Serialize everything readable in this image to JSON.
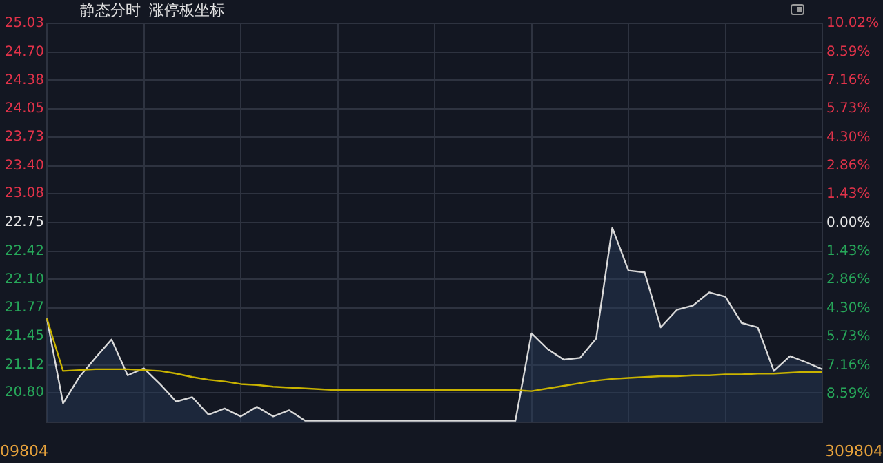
{
  "chart_data": {
    "type": "area",
    "annotations": [
      "静态分时",
      "涨停板坐标",
      "09804",
      "309804"
    ],
    "categories": [
      null,
      null,
      null,
      null,
      null,
      null,
      null,
      null,
      null,
      null,
      null,
      null,
      null,
      null,
      null,
      null,
      null,
      null,
      null,
      null,
      null,
      null,
      null,
      null,
      null,
      null,
      null,
      null,
      null,
      null,
      null,
      null,
      null,
      null,
      null,
      null,
      null,
      null,
      null,
      null,
      null,
      null,
      null,
      null,
      null,
      null,
      null,
      null,
      null
    ],
    "ylim": [
      20.46,
      25.03
    ],
    "yticks": [
      25.03,
      {
        "value": 24.7,
        "label": "24.70"
      },
      24.38,
      24.05,
      23.73,
      {
        "value": 23.4,
        "label": "23.40"
      },
      23.08,
      22.75,
      22.42,
      {
        "value": 22.1,
        "label": "22.10"
      },
      21.77,
      21.45,
      21.12,
      {
        "value": 20.8,
        "label": "20.80"
      }
    ],
    "y2lim": [
      -10.02,
      10.02
    ],
    "y2ticks": [
      {
        "value": 10.02,
        "label": "10.02%"
      },
      {
        "value": 8.59,
        "label": "8.59%"
      },
      {
        "value": 7.16,
        "label": "7.16%"
      },
      {
        "value": 5.73,
        "label": "5.73%"
      },
      {
        "value": 4.3,
        "label": "4.30%"
      },
      {
        "value": 2.86,
        "label": "2.86%"
      },
      {
        "value": 1.43,
        "label": "1.43%"
      },
      {
        "value": 0,
        "label": "0.00%"
      },
      {
        "value": -1.43,
        "label": "1.43%"
      },
      {
        "value": -2.86,
        "label": "2.86%"
      },
      {
        "value": -4.3,
        "label": "4.30%"
      },
      {
        "value": -5.73,
        "label": "5.73%"
      },
      {
        "value": -7.16,
        "label": "7.16%"
      },
      {
        "value": -8.59,
        "label": "8.59%"
      }
    ],
    "grid": true,
    "series": [
      {
        "color": "#d9d9d9",
        "values": [
          21.65,
          20.68,
          20.98,
          21.2,
          21.41,
          21.0,
          21.08,
          20.9,
          20.7,
          20.75,
          20.55,
          20.62,
          20.53,
          20.64,
          20.53,
          20.6,
          20.48,
          20.48,
          20.48,
          20.48,
          20.48,
          20.48,
          20.48,
          20.48,
          20.48,
          20.48,
          20.48,
          20.48,
          20.48,
          20.48,
          21.48,
          21.3,
          21.18,
          21.2,
          21.42,
          22.69,
          22.2,
          22.18,
          21.55,
          21.75,
          21.8,
          21.95,
          21.9,
          21.6,
          21.55,
          21.05,
          21.22,
          21.15,
          21.07
        ]
      },
      {
        "type": "line",
        "color": "#c9b300",
        "values": [
          21.65,
          21.05,
          21.06,
          21.07,
          21.07,
          21.07,
          21.06,
          21.05,
          21.02,
          20.98,
          20.95,
          20.93,
          20.9,
          20.89,
          20.87,
          20.86,
          20.85,
          20.84,
          20.83,
          20.83,
          20.83,
          20.83,
          20.83,
          20.83,
          20.83,
          20.83,
          20.83,
          20.83,
          20.83,
          20.83,
          20.82,
          20.85,
          20.88,
          20.91,
          20.94,
          20.96,
          20.97,
          20.98,
          20.99,
          20.99,
          21.0,
          21.0,
          21.01,
          21.01,
          21.02,
          21.02,
          21.03,
          21.04,
          21.04
        ]
      }
    ]
  }
}
